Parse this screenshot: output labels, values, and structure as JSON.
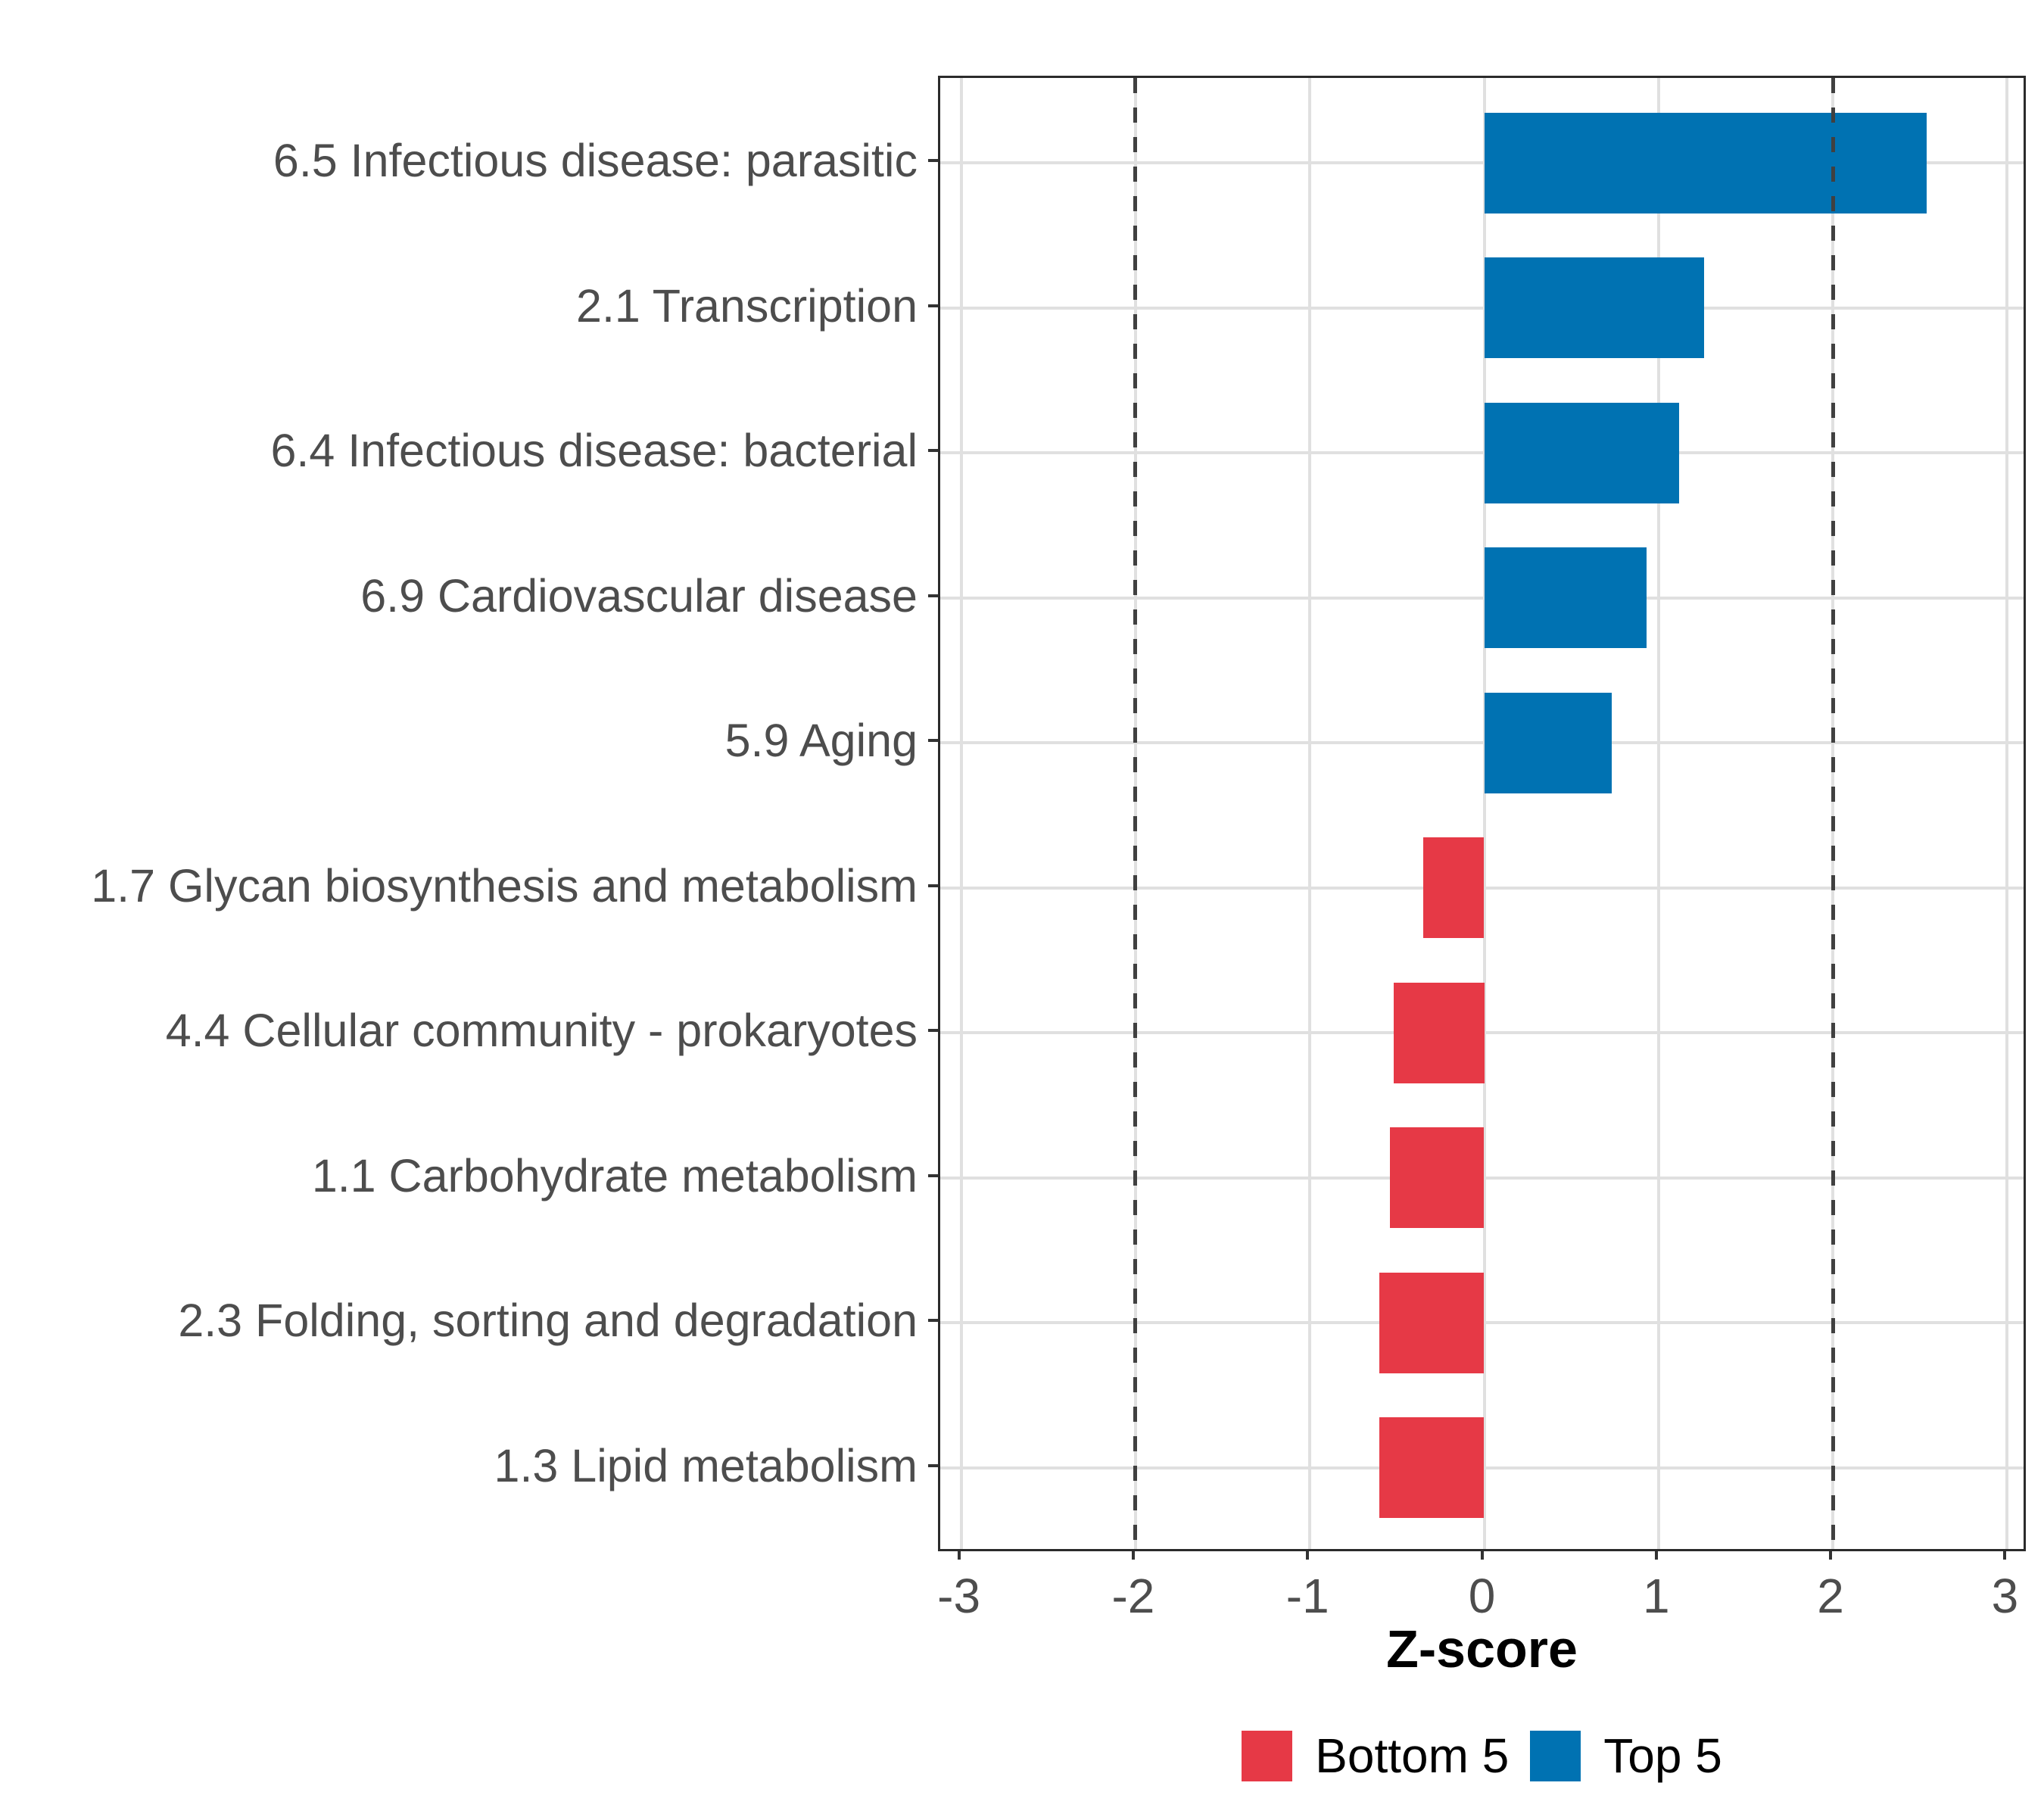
{
  "chart_data": {
    "type": "bar",
    "orientation": "horizontal",
    "title": "",
    "xlabel": "Z-score",
    "ylabel": "",
    "xlim": [
      -3.12,
      3.12
    ],
    "x_ticks": [
      -3,
      -2,
      -1,
      0,
      1,
      2,
      3
    ],
    "x_tick_labels": [
      "-3",
      "-2",
      "-1",
      "0",
      "1",
      "2",
      "3"
    ],
    "reference_lines": [
      -2,
      2
    ],
    "grid": "major-only",
    "legend_position": "bottom",
    "categories": [
      "6.5 Infectious disease: parasitic",
      "2.1 Transcription",
      "6.4 Infectious disease: bacterial",
      "6.9 Cardiovascular disease",
      "5.9 Aging",
      "1.7 Glycan biosynthesis and metabolism",
      "4.4 Cellular community - prokaryotes",
      "1.1 Carbohydrate metabolism",
      "2.3 Folding, sorting and degradation",
      "1.3 Lipid metabolism"
    ],
    "bars": [
      {
        "label": "6.5 Infectious disease: parasitic",
        "value": 2.54,
        "group": "Top 5"
      },
      {
        "label": "2.1 Transcription",
        "value": 1.26,
        "group": "Top 5"
      },
      {
        "label": "6.4 Infectious disease: bacterial",
        "value": 1.12,
        "group": "Top 5"
      },
      {
        "label": "6.9 Cardiovascular disease",
        "value": 0.93,
        "group": "Top 5"
      },
      {
        "label": "5.9 Aging",
        "value": 0.73,
        "group": "Top 5"
      },
      {
        "label": "1.7 Glycan biosynthesis and metabolism",
        "value": -0.35,
        "group": "Bottom 5"
      },
      {
        "label": "4.4 Cellular community - prokaryotes",
        "value": -0.52,
        "group": "Bottom 5"
      },
      {
        "label": "1.1 Carbohydrate metabolism",
        "value": -0.54,
        "group": "Bottom 5"
      },
      {
        "label": "2.3 Folding, sorting and degradation",
        "value": -0.6,
        "group": "Bottom 5"
      },
      {
        "label": "1.3 Lipid metabolism",
        "value": -0.6,
        "group": "Bottom 5"
      }
    ],
    "legend": [
      {
        "label": "Bottom 5",
        "color": "#E63946"
      },
      {
        "label": "Top 5",
        "color": "#0072B2"
      }
    ],
    "colors": {
      "Top 5": "#0072B2",
      "Bottom 5": "#E63946",
      "grid": "#e0e0e0",
      "reference_line": "#404040",
      "axis_text": "#4d4d4d",
      "panel_border": "#2b2b2b"
    }
  }
}
